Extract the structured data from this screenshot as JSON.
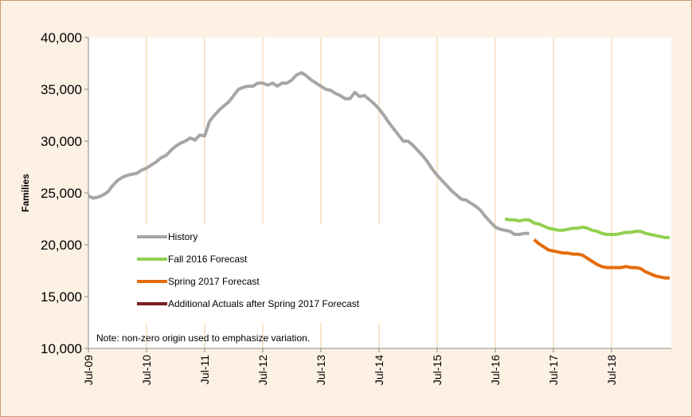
{
  "chart_data": {
    "type": "line",
    "y_label": "Families",
    "note": "Note: non-zero origin used to emphasize variation.",
    "categories": [
      "Jul-09",
      null,
      null,
      null,
      null,
      null,
      null,
      null,
      null,
      null,
      null,
      null,
      "Jul-10",
      null,
      null,
      null,
      null,
      null,
      null,
      null,
      null,
      null,
      null,
      null,
      "Jul-11",
      null,
      null,
      null,
      null,
      null,
      null,
      null,
      null,
      null,
      null,
      null,
      "Jul-12",
      null,
      null,
      null,
      null,
      null,
      null,
      null,
      null,
      null,
      null,
      null,
      "Jul-13",
      null,
      null,
      null,
      null,
      null,
      null,
      null,
      null,
      null,
      null,
      null,
      "Jul-14",
      null,
      null,
      null,
      null,
      null,
      null,
      null,
      null,
      null,
      null,
      null,
      "Jul-15",
      null,
      null,
      null,
      null,
      null,
      null,
      null,
      null,
      null,
      null,
      null,
      "Jul-16",
      null,
      null,
      null,
      null,
      null,
      null,
      null,
      null,
      null,
      null,
      null,
      "Jul-17",
      null,
      null,
      null,
      null,
      null,
      null,
      null,
      null,
      null,
      null,
      null,
      "Jul-18",
      null,
      null,
      null,
      null,
      null,
      null,
      null,
      null,
      null,
      null,
      null,
      null
    ],
    "series": [
      {
        "name": "History",
        "color": "#a6a6a6",
        "values": [
          24700,
          24500,
          24600,
          24800,
          25100,
          25700,
          26200,
          26500,
          26700,
          26800,
          26900,
          27200,
          27400,
          27700,
          28000,
          28400,
          28600,
          29100,
          29500,
          29800,
          30000,
          30300,
          30100,
          30600,
          30500,
          31900,
          32500,
          33000,
          33400,
          33800,
          34400,
          35000,
          35200,
          35300,
          35300,
          35600,
          35600,
          35400,
          35600,
          35300,
          35600,
          35600,
          35900,
          36400,
          36600,
          36300,
          35900,
          35600,
          35300,
          35000,
          34900,
          34600,
          34400,
          34100,
          34100,
          34700,
          34300,
          34400,
          34000,
          33600,
          33100,
          32500,
          31800,
          31200,
          30600,
          30000,
          30000,
          29600,
          29100,
          28600,
          28000,
          27300,
          26700,
          26200,
          25700,
          25200,
          24800,
          24400,
          24300,
          24000,
          23700,
          23300,
          22700,
          22200,
          21700,
          21500,
          21400,
          21300,
          21000,
          21000,
          21100,
          21100,
          null,
          null,
          null,
          null,
          null,
          null,
          null,
          null,
          null,
          null,
          null,
          null,
          null,
          null,
          null,
          null,
          null,
          null,
          null,
          null,
          null,
          null,
          null,
          null,
          null,
          null,
          null,
          null,
          null
        ]
      },
      {
        "name": "Fall 2016 Forecast",
        "color": "#92d050",
        "values": [
          null,
          null,
          null,
          null,
          null,
          null,
          null,
          null,
          null,
          null,
          null,
          null,
          null,
          null,
          null,
          null,
          null,
          null,
          null,
          null,
          null,
          null,
          null,
          null,
          null,
          null,
          null,
          null,
          null,
          null,
          null,
          null,
          null,
          null,
          null,
          null,
          null,
          null,
          null,
          null,
          null,
          null,
          null,
          null,
          null,
          null,
          null,
          null,
          null,
          null,
          null,
          null,
          null,
          null,
          null,
          null,
          null,
          null,
          null,
          null,
          null,
          null,
          null,
          null,
          null,
          null,
          null,
          null,
          null,
          null,
          null,
          null,
          null,
          null,
          null,
          null,
          null,
          null,
          null,
          null,
          null,
          null,
          null,
          null,
          null,
          null,
          22500,
          22400,
          22400,
          22300,
          22400,
          22400,
          22100,
          22000,
          21800,
          21600,
          21500,
          21400,
          21400,
          21500,
          21600,
          21600,
          21700,
          21600,
          21400,
          21300,
          21100,
          21000,
          21000,
          21000,
          21100,
          21200,
          21200,
          21300,
          21300,
          21100,
          21000,
          20900,
          20800,
          20700,
          20700
        ]
      },
      {
        "name": "Spring 2017 Forecast",
        "color": "#e46c0a",
        "values": [
          null,
          null,
          null,
          null,
          null,
          null,
          null,
          null,
          null,
          null,
          null,
          null,
          null,
          null,
          null,
          null,
          null,
          null,
          null,
          null,
          null,
          null,
          null,
          null,
          null,
          null,
          null,
          null,
          null,
          null,
          null,
          null,
          null,
          null,
          null,
          null,
          null,
          null,
          null,
          null,
          null,
          null,
          null,
          null,
          null,
          null,
          null,
          null,
          null,
          null,
          null,
          null,
          null,
          null,
          null,
          null,
          null,
          null,
          null,
          null,
          null,
          null,
          null,
          null,
          null,
          null,
          null,
          null,
          null,
          null,
          null,
          null,
          null,
          null,
          null,
          null,
          null,
          null,
          null,
          null,
          null,
          null,
          null,
          null,
          null,
          null,
          null,
          null,
          null,
          null,
          null,
          null,
          20500,
          20100,
          19800,
          19500,
          19400,
          19300,
          19200,
          19200,
          19100,
          19100,
          19000,
          18700,
          18400,
          18100,
          17900,
          17800,
          17800,
          17800,
          17800,
          17900,
          17800,
          17800,
          17700,
          17400,
          17200,
          17000,
          16900,
          16800,
          16800
        ]
      },
      {
        "name": "Additional Actuals after Spring 2017 Forecast",
        "color": "#7b1f1f",
        "values": [
          null,
          null,
          null,
          null,
          null,
          null,
          null,
          null,
          null,
          null,
          null,
          null,
          null,
          null,
          null,
          null,
          null,
          null,
          null,
          null,
          null,
          null,
          null,
          null,
          null,
          null,
          null,
          null,
          null,
          null,
          null,
          null,
          null,
          null,
          null,
          null,
          null,
          null,
          null,
          null,
          null,
          null,
          null,
          null,
          null,
          null,
          null,
          null,
          null,
          null,
          null,
          null,
          null,
          null,
          null,
          null,
          null,
          null,
          null,
          null,
          null,
          null,
          null,
          null,
          null,
          null,
          null,
          null,
          null,
          null,
          null,
          null,
          null,
          null,
          null,
          null,
          null,
          null,
          null,
          null,
          null,
          null,
          null,
          null,
          null,
          null,
          null,
          null,
          null,
          null,
          null,
          null,
          null,
          null,
          null,
          null,
          null,
          null,
          null,
          null,
          null,
          null,
          null,
          null,
          null,
          null,
          null,
          null,
          null,
          null,
          null,
          null,
          null,
          null,
          null,
          null,
          null,
          null,
          null,
          null,
          null
        ]
      }
    ],
    "ylim": [
      10000,
      40000
    ],
    "yticks": [
      {
        "value": 10000,
        "label": "10,000"
      },
      {
        "value": 15000,
        "label": "15,000"
      },
      {
        "value": 20000,
        "label": "20,000"
      },
      {
        "value": 25000,
        "label": "25,000"
      },
      {
        "value": 30000,
        "label": "30,000"
      },
      {
        "value": 35000,
        "label": "35,000"
      },
      {
        "value": 40000,
        "label": "40,000"
      }
    ],
    "grid": true
  }
}
